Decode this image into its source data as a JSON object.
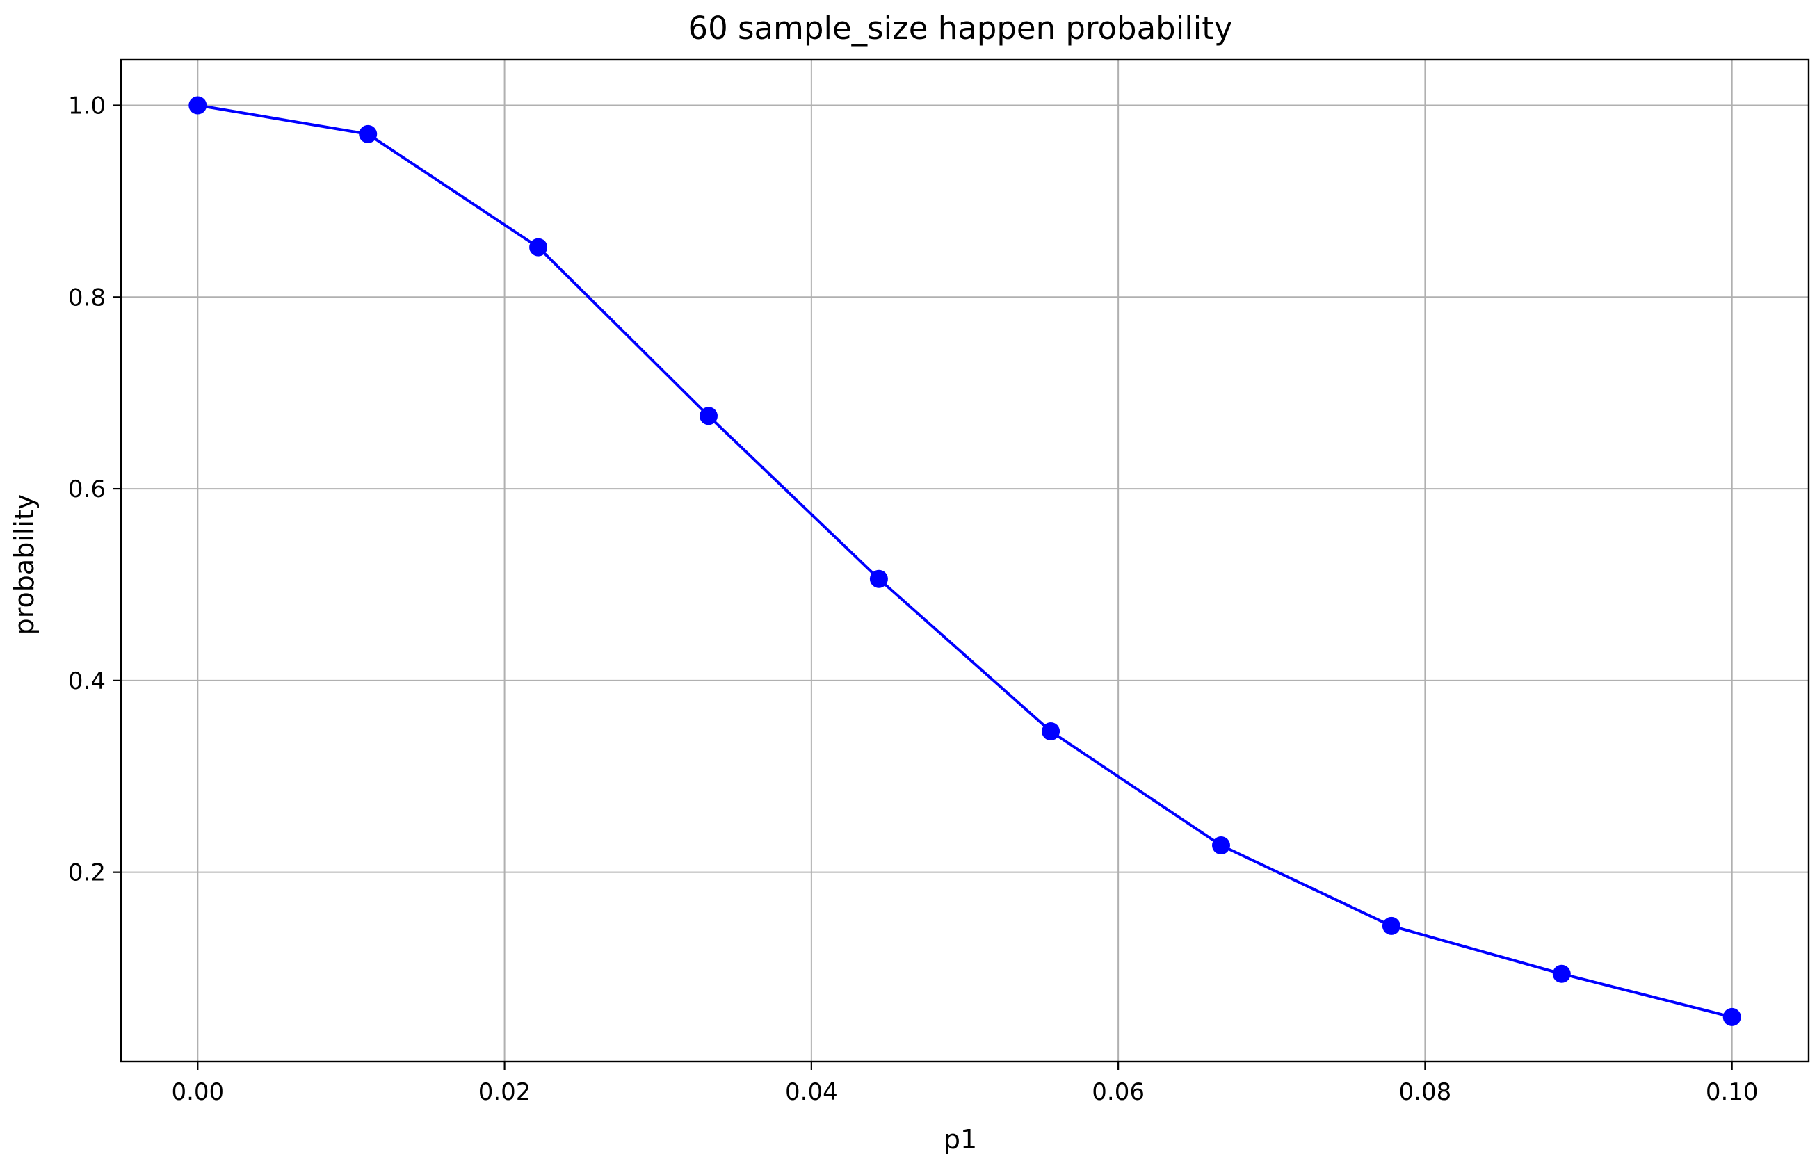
{
  "chart_data": {
    "type": "line",
    "title": "60 sample_size happen  probability",
    "xlabel": "p1",
    "ylabel": "probability",
    "xlim": [
      -0.005,
      0.105
    ],
    "ylim": [
      0.0025,
      1.0475
    ],
    "xticks": [
      0.0,
      0.02,
      0.04,
      0.06,
      0.08,
      0.1
    ],
    "xtick_labels": [
      "0.00",
      "0.02",
      "0.04",
      "0.06",
      "0.08",
      "0.10"
    ],
    "yticks": [
      0.2,
      0.4,
      0.6,
      0.8,
      1.0
    ],
    "ytick_labels": [
      "0.2",
      "0.4",
      "0.6",
      "0.8",
      "1.0"
    ],
    "grid": true,
    "legend": null,
    "series": [
      {
        "color": "#0000ff",
        "marker": "circle",
        "x": [
          0.0,
          0.0111,
          0.0222,
          0.0333,
          0.0444,
          0.0556,
          0.0667,
          0.0778,
          0.0889,
          0.1
        ],
        "y": [
          1.0,
          0.97,
          0.852,
          0.676,
          0.506,
          0.347,
          0.228,
          0.144,
          0.094,
          0.049
        ]
      }
    ],
    "colors": {
      "grid": "#b0b0b0",
      "axes": "#000000",
      "series": "#0000ff"
    }
  }
}
